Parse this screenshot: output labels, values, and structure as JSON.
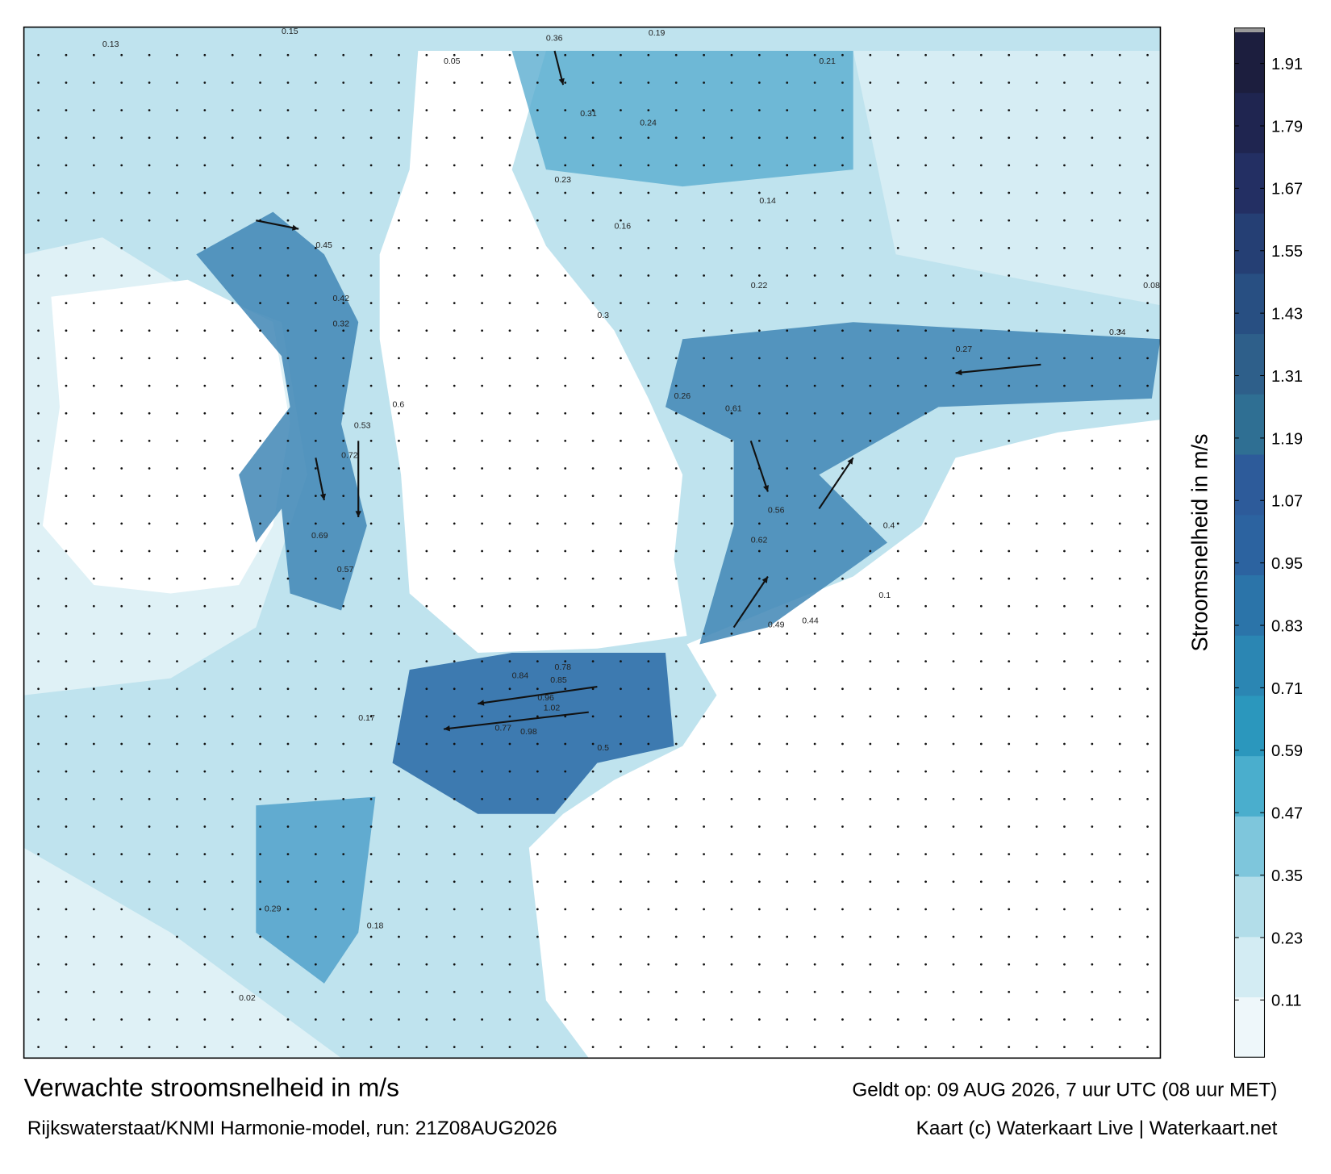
{
  "map": {
    "title": "Verwachte stroomsnelheid in m/s",
    "source": "Rijkswaterstaat/KNMI Harmonie-model, run: 21Z08AUG2026",
    "valid": "Geldt op: 09 AUG 2026, 7 uur UTC (08 uur MET)",
    "credit": "Kaart (c) Waterkaart Live | Waterkaart.net",
    "colorbar": {
      "label": "Stroomsnelheid in m/s",
      "lim": [
        0,
        1.97
      ],
      "ticks": [
        0.11,
        0.23,
        0.35,
        0.47,
        0.59,
        0.71,
        0.83,
        0.95,
        1.07,
        1.19,
        1.31,
        1.43,
        1.55,
        1.67,
        1.79,
        1.91
      ],
      "colors": [
        "#eef7fa",
        "#d3ecf3",
        "#b2dde9",
        "#7ec6dc",
        "#4aaecd",
        "#2b97bd",
        "#2b86b3",
        "#2b74a9",
        "#2c63a0",
        "#2d5b9a",
        "#2f6f93",
        "#2e5f8a",
        "#284f82",
        "#253f74",
        "#232f63",
        "#1f2550",
        "#1c1e3e"
      ]
    },
    "value_labels": [
      0.13,
      0.15,
      0.36,
      0.19,
      0.24,
      0.14,
      0.23,
      0.22,
      0.21,
      0.34,
      0.31,
      0.26,
      0.32,
      0.45,
      0.42,
      0.6,
      0.72,
      0.69,
      0.53,
      0.57,
      0.84,
      0.78,
      0.85,
      0.96,
      1.02,
      0.98,
      0.77,
      0.5,
      0.61,
      0.62,
      0.56,
      0.49,
      0.44,
      0.4,
      0.3,
      0.17,
      0.18,
      0.29,
      0.27,
      0.16,
      0.05,
      0.08,
      0.1,
      0.02
    ]
  }
}
